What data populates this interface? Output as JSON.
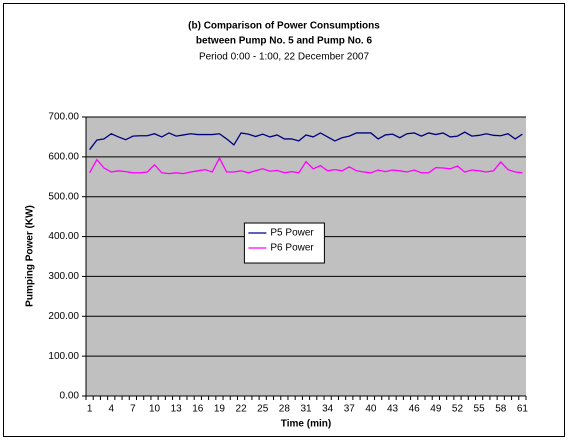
{
  "chart_data": {
    "type": "line",
    "title": [
      "(b) Comparison of Power Consumptions",
      "between Pump No. 5 and Pump No. 6"
    ],
    "subtitle": "Period 0:00 - 1:00, 22 December 2007",
    "x_label": "Time (min)",
    "y_label": "Pumping Power (KW)",
    "categories": [
      1,
      null,
      null,
      4,
      null,
      null,
      7,
      null,
      null,
      10,
      null,
      null,
      13,
      null,
      null,
      16,
      null,
      null,
      19,
      null,
      null,
      22,
      null,
      null,
      25,
      null,
      null,
      28,
      null,
      null,
      31,
      null,
      null,
      34,
      null,
      null,
      37,
      null,
      null,
      40,
      null,
      null,
      43,
      null,
      null,
      46,
      null,
      null,
      49,
      null,
      null,
      52,
      null,
      null,
      55,
      null,
      null,
      58,
      null,
      null,
      61
    ],
    "series": [
      {
        "name": "P5 Power",
        "color": "#000080",
        "values": [
          618,
          642,
          645,
          658,
          650,
          643,
          652,
          653,
          653,
          658,
          650,
          660,
          652,
          655,
          658,
          656,
          656,
          656,
          658,
          645,
          630,
          660,
          657,
          651,
          657,
          650,
          655,
          645,
          645,
          640,
          655,
          650,
          660,
          650,
          640,
          648,
          652,
          660,
          660,
          660,
          645,
          655,
          657,
          648,
          658,
          660,
          652,
          660,
          656,
          660,
          650,
          652,
          662,
          652,
          654,
          658,
          654,
          653,
          658,
          645,
          657
        ]
      },
      {
        "name": "P6 Power",
        "color": "#ff00ff",
        "values": [
          560,
          593,
          572,
          562,
          565,
          563,
          560,
          560,
          562,
          580,
          560,
          558,
          560,
          558,
          562,
          565,
          568,
          562,
          597,
          562,
          562,
          565,
          560,
          565,
          570,
          564,
          566,
          560,
          563,
          560,
          588,
          570,
          578,
          565,
          568,
          565,
          575,
          565,
          562,
          560,
          567,
          563,
          567,
          565,
          562,
          567,
          560,
          560,
          573,
          572,
          570,
          577,
          562,
          567,
          565,
          562,
          565,
          587,
          568,
          562,
          560
        ]
      }
    ],
    "ylim": [
      0,
      700
    ],
    "yticks": [
      {
        "value": 0,
        "label": "0.00"
      },
      {
        "value": 100,
        "label": "100.00"
      },
      {
        "value": 200,
        "label": "200.00"
      },
      {
        "value": 300,
        "label": "300.00"
      },
      {
        "value": 400,
        "label": "400.00"
      },
      {
        "value": 500,
        "label": "500.00"
      },
      {
        "value": 600,
        "label": "600.00"
      },
      {
        "value": 700,
        "label": "700.00"
      }
    ],
    "grid": true,
    "plot_background": "#c0c0c0",
    "legend": "center"
  }
}
